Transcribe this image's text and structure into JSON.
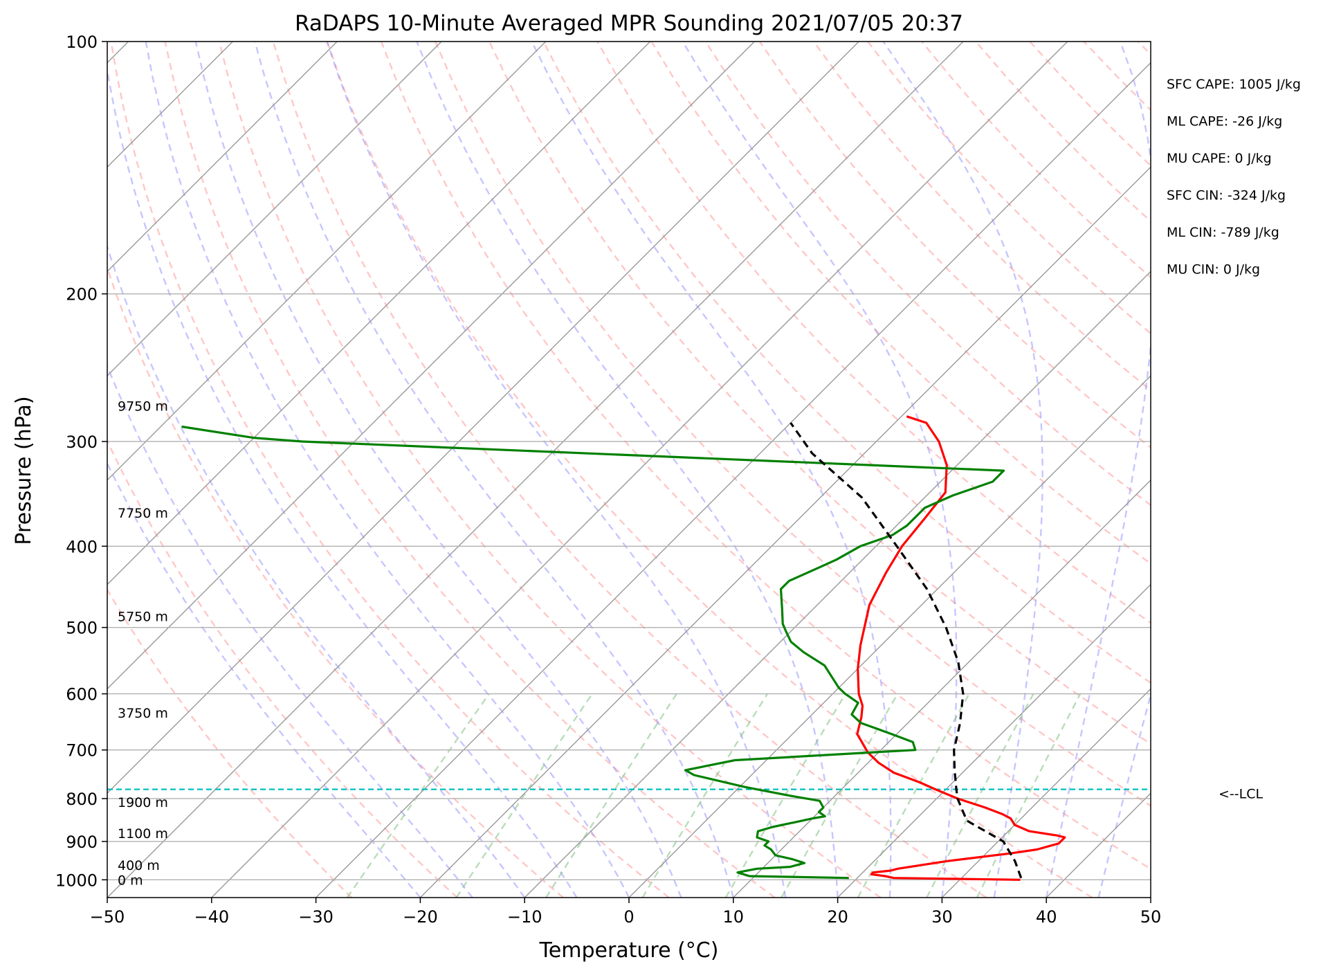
{
  "chart_data": {
    "type": "line",
    "title": "RaDAPS 10-Minute Averaged MPR Sounding 2021/07/05 20:37",
    "xlabel": "Temperature (°C)",
    "ylabel": "Pressure (hPa)",
    "xlim": [
      -50,
      50
    ],
    "ylim": [
      1050,
      100
    ],
    "y_scale": "log",
    "grid": true,
    "x_ticks": [
      -50,
      -40,
      -30,
      -20,
      -10,
      0,
      10,
      20,
      30,
      40,
      50
    ],
    "x_tick_labels": [
      "−50",
      "−40",
      "−30",
      "−20",
      "−10",
      "0",
      "10",
      "20",
      "30",
      "40",
      "50"
    ],
    "y_ticks": [
      100,
      200,
      300,
      400,
      500,
      600,
      700,
      800,
      900,
      1000
    ],
    "y_tick_labels": [
      "100",
      "200",
      "300",
      "400",
      "500",
      "600",
      "700",
      "800",
      "900",
      "1000"
    ],
    "skew": 1,
    "series": [
      {
        "role": "temperature",
        "color": "#ff0000",
        "style": "solid",
        "points": [
          [
            35.8,
            1000
          ],
          [
            23.5,
            995
          ],
          [
            22.5,
            990
          ],
          [
            21,
            985
          ],
          [
            21,
            980
          ],
          [
            22.5,
            975
          ],
          [
            23,
            970
          ],
          [
            27,
            950
          ],
          [
            32.3,
            930
          ],
          [
            34.5,
            920
          ],
          [
            36,
            905
          ],
          [
            36,
            890
          ],
          [
            35,
            885
          ],
          [
            32,
            875
          ],
          [
            30,
            860
          ],
          [
            29,
            845
          ],
          [
            27.8,
            835
          ],
          [
            25.5,
            820
          ],
          [
            22,
            800
          ],
          [
            19,
            780
          ],
          [
            16.8,
            765
          ],
          [
            13.4,
            745
          ],
          [
            11,
            725
          ],
          [
            9,
            705
          ],
          [
            6.2,
            670
          ],
          [
            5,
            640
          ],
          [
            4,
            620
          ],
          [
            2.5,
            600
          ],
          [
            0,
            560
          ],
          [
            -2,
            525
          ],
          [
            -5,
            470
          ],
          [
            -6.5,
            430
          ],
          [
            -7.5,
            400
          ],
          [
            -8,
            370
          ],
          [
            -8.5,
            345
          ],
          [
            -11,
            320
          ],
          [
            -14,
            300
          ],
          [
            -17,
            285
          ],
          [
            -19.5,
            280
          ]
        ]
      },
      {
        "role": "dewpoint",
        "color": "#008000",
        "style": "solid",
        "points": [
          [
            19.2,
            995
          ],
          [
            9.5,
            990
          ],
          [
            8,
            980
          ],
          [
            9.5,
            970
          ],
          [
            12.5,
            965
          ],
          [
            13.5,
            955
          ],
          [
            12,
            945
          ],
          [
            10,
            935
          ],
          [
            9,
            920
          ],
          [
            8,
            910
          ],
          [
            8,
            900
          ],
          [
            6.5,
            890
          ],
          [
            6,
            875
          ],
          [
            7,
            865
          ],
          [
            8.5,
            855
          ],
          [
            10,
            845
          ],
          [
            11,
            840
          ],
          [
            10,
            830
          ],
          [
            10,
            820
          ],
          [
            9,
            805
          ],
          [
            6,
            795
          ],
          [
            0.5,
            775
          ],
          [
            -5.5,
            750
          ],
          [
            -6.8,
            740
          ],
          [
            -3,
            720
          ],
          [
            13.3,
            700
          ],
          [
            12.3,
            685
          ],
          [
            9.5,
            670
          ],
          [
            5.5,
            650
          ],
          [
            3.8,
            635
          ],
          [
            3.3,
            615
          ],
          [
            1.2,
            600
          ],
          [
            0,
            590
          ],
          [
            -3.5,
            555
          ],
          [
            -6.8,
            535
          ],
          [
            -9,
            520
          ],
          [
            -10.5,
            505
          ],
          [
            -11.5,
            495
          ],
          [
            -13,
            475
          ],
          [
            -15,
            450
          ],
          [
            -15,
            440
          ],
          [
            -13.5,
            425
          ],
          [
            -12.5,
            415
          ],
          [
            -11.5,
            400
          ],
          [
            -9.5,
            388
          ],
          [
            -9,
            378
          ],
          [
            -9,
            370
          ],
          [
            -9,
            360
          ],
          [
            -7.5,
            348
          ],
          [
            -5,
            335
          ],
          [
            -5,
            325
          ],
          [
            -75,
            300
          ],
          [
            -80,
            297
          ],
          [
            -88,
            288
          ]
        ]
      },
      {
        "role": "parcel",
        "color": "#000000",
        "style": "dashed",
        "points": [
          [
            35.7,
            995
          ],
          [
            33.5,
            950
          ],
          [
            30.5,
            900
          ],
          [
            25,
            850
          ],
          [
            22,
            800
          ],
          [
            21,
            780
          ],
          [
            19,
            740
          ],
          [
            17,
            700
          ],
          [
            15,
            650
          ],
          [
            12.5,
            600
          ],
          [
            9,
            550
          ],
          [
            4.5,
            500
          ],
          [
            -1,
            450
          ],
          [
            -8,
            400
          ],
          [
            -16,
            350
          ],
          [
            -25,
            310
          ],
          [
            -30,
            285
          ]
        ]
      },
      {
        "role": "lcl",
        "color": "#00bfbf",
        "style": "dashed",
        "pressure": 780
      }
    ],
    "height_labels": [
      {
        "text": "9750 m",
        "p": 272
      },
      {
        "text": "7750 m",
        "p": 365
      },
      {
        "text": "5750 m",
        "p": 485
      },
      {
        "text": "3750 m",
        "p": 632
      },
      {
        "text": "1900 m",
        "p": 808
      },
      {
        "text": "1100 m",
        "p": 880
      },
      {
        "text": "400 m",
        "p": 960
      },
      {
        "text": "0 m",
        "p": 1000
      }
    ],
    "annotations": [
      "SFC CAPE: 1005 J/kg",
      "ML CAPE: -26 J/kg",
      "MU CAPE: 0 J/kg",
      "SFC CIN: -324 J/kg",
      "ML CIN: -789 J/kg",
      "MU CIN: 0 J/kg"
    ],
    "lcl_label": "<--LCL",
    "colors": {
      "dry_adiabat": "#ff9999",
      "moist_adiabat": "#8080ff",
      "mixing_ratio": "#80c080",
      "isotherm": "#999999",
      "grid": "#b0b0b0"
    }
  }
}
